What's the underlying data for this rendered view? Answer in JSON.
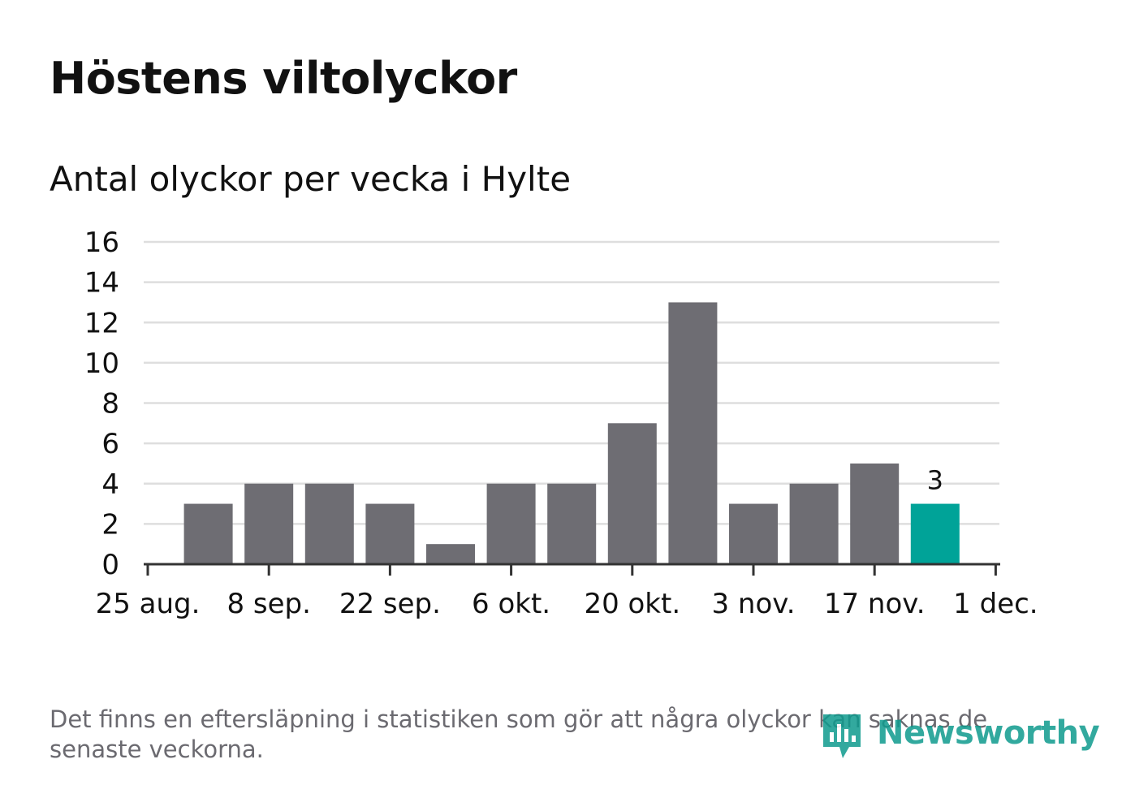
{
  "title": "Höstens viltolyckor",
  "subtitle": "Antal olyckor per vecka i Hylte",
  "footnote": "Det finns en eftersläpning i statistiken som gör att några olyckor kan saknas de senaste veckorna.",
  "logo": {
    "text": "Newsworthy",
    "icon": "newsworthy-logo-icon"
  },
  "colors": {
    "bar": "#6e6d73",
    "highlight": "#00a398",
    "grid": "#dedede",
    "axis": "#333333",
    "text": "#111111",
    "muted": "#6b6a70"
  },
  "chart_data": {
    "type": "bar",
    "x": [
      "2024-09-01",
      "2024-09-08",
      "2024-09-15",
      "2024-09-22",
      "2024-09-29",
      "2024-10-06",
      "2024-10-13",
      "2024-10-20",
      "2024-10-27",
      "2024-11-03",
      "2024-11-10",
      "2024-11-17",
      "2024-11-24"
    ],
    "values": [
      3,
      4,
      4,
      3,
      1,
      4,
      4,
      7,
      13,
      3,
      4,
      5,
      3
    ],
    "highlight_index": 12,
    "data_labels": [
      {
        "index": 12,
        "text": "3"
      }
    ],
    "ylim": [
      0,
      16
    ],
    "yticks": [
      "0",
      "2",
      "4",
      "6",
      "8",
      "10",
      "12",
      "14",
      "16"
    ],
    "xticks": [
      "25 aug.",
      "8 sep.",
      "22 sep.",
      "6 okt.",
      "20 okt.",
      "3 nov.",
      "17 nov.",
      "1 dec."
    ],
    "grid": true,
    "xlabel": "",
    "ylabel": ""
  }
}
